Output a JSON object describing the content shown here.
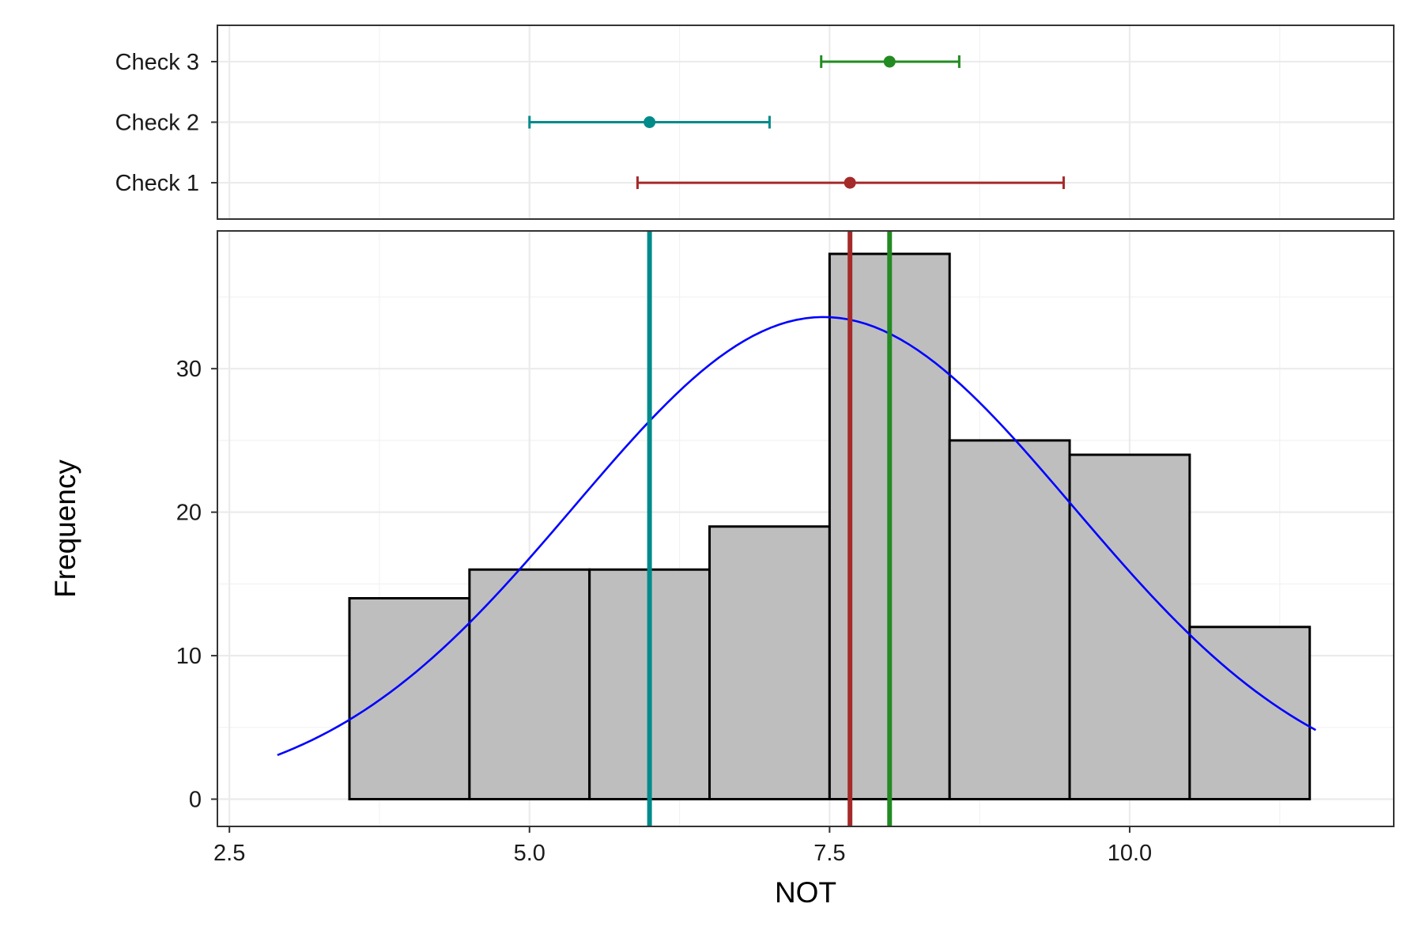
{
  "chart_data": {
    "type": "histogram",
    "xlabel": "NOT",
    "ylabel": "Frequency",
    "xlim": [
      2.4,
      12.2
    ],
    "x_ticks": [
      2.5,
      5.0,
      7.5,
      10.0
    ],
    "x_tick_labels": [
      "2.5",
      "5.0",
      "7.5",
      "10.0"
    ],
    "y_ticks": [
      0,
      10,
      20,
      30
    ],
    "y_tick_labels": [
      "0",
      "10",
      "20",
      "30"
    ],
    "ylim": [
      -1.9,
      39.6
    ],
    "grid": true,
    "bins": [
      {
        "x0": 3.5,
        "x1": 4.5,
        "count": 14
      },
      {
        "x0": 4.5,
        "x1": 5.5,
        "count": 16
      },
      {
        "x0": 5.5,
        "x1": 6.5,
        "count": 16
      },
      {
        "x0": 6.5,
        "x1": 7.5,
        "count": 19
      },
      {
        "x0": 7.5,
        "x1": 8.5,
        "count": 38
      },
      {
        "x0": 8.5,
        "x1": 9.5,
        "count": 25
      },
      {
        "x0": 9.5,
        "x1": 10.5,
        "count": 24
      },
      {
        "x0": 10.5,
        "x1": 11.5,
        "count": 12
      }
    ],
    "bar_color": "#bebebe",
    "normal_curve": {
      "mean": 7.45,
      "sd": 2.08,
      "peak": 33.6,
      "x_range": [
        2.9,
        11.55
      ],
      "color": "#0000ff"
    },
    "checks": [
      {
        "label": "Check 1",
        "estimate": 7.67,
        "lower": 5.9,
        "upper": 9.45,
        "color": "#a52a2a"
      },
      {
        "label": "Check 2",
        "estimate": 6.0,
        "lower": 5.0,
        "upper": 7.0,
        "color": "#008b8b"
      },
      {
        "label": "Check 3",
        "estimate": 8.0,
        "lower": 7.43,
        "upper": 8.58,
        "color": "#228b22"
      }
    ]
  }
}
